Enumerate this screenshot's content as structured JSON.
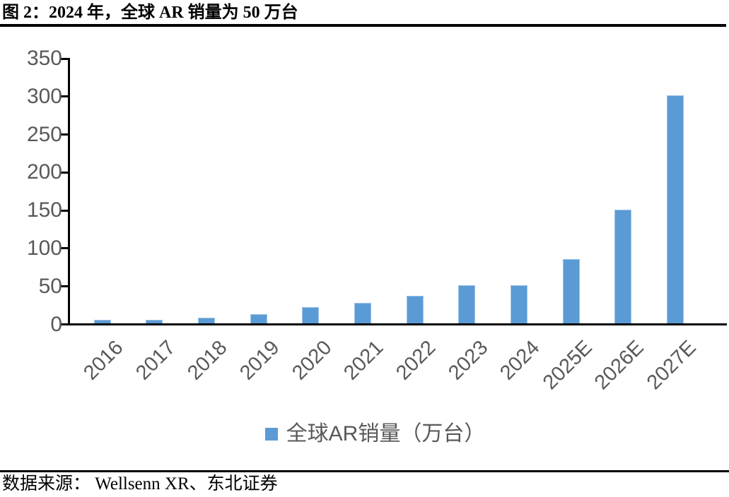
{
  "title": "图 2：2024 年，全球 AR 销量为 50 万台",
  "source": "数据来源： Wellsenn XR、东北证券",
  "legend": {
    "label": "全球AR销量（万台）"
  },
  "colors": {
    "bar": "#5B9BD5",
    "bar_border": "#9DC3E6",
    "axis": "#000000",
    "tick_label": "#595959"
  },
  "chart_data": {
    "type": "bar",
    "title": "图 2：2024 年，全球 AR 销量为 50 万台",
    "categories": [
      "2016",
      "2017",
      "2018",
      "2019",
      "2020",
      "2021",
      "2022",
      "2023",
      "2024",
      "2025E",
      "2026E",
      "2027E"
    ],
    "series": [
      {
        "name": "全球AR销量（万台）",
        "values": [
          5,
          5,
          7,
          12,
          21,
          27,
          36,
          50,
          50,
          85,
          150,
          300
        ]
      }
    ],
    "xlabel": "",
    "ylabel": "",
    "ylim": [
      0,
      350
    ],
    "yticks": [
      0,
      50,
      100,
      150,
      200,
      250,
      300,
      350
    ],
    "grid": false,
    "legend_position": "bottom",
    "x_tick_rotation": -45
  }
}
